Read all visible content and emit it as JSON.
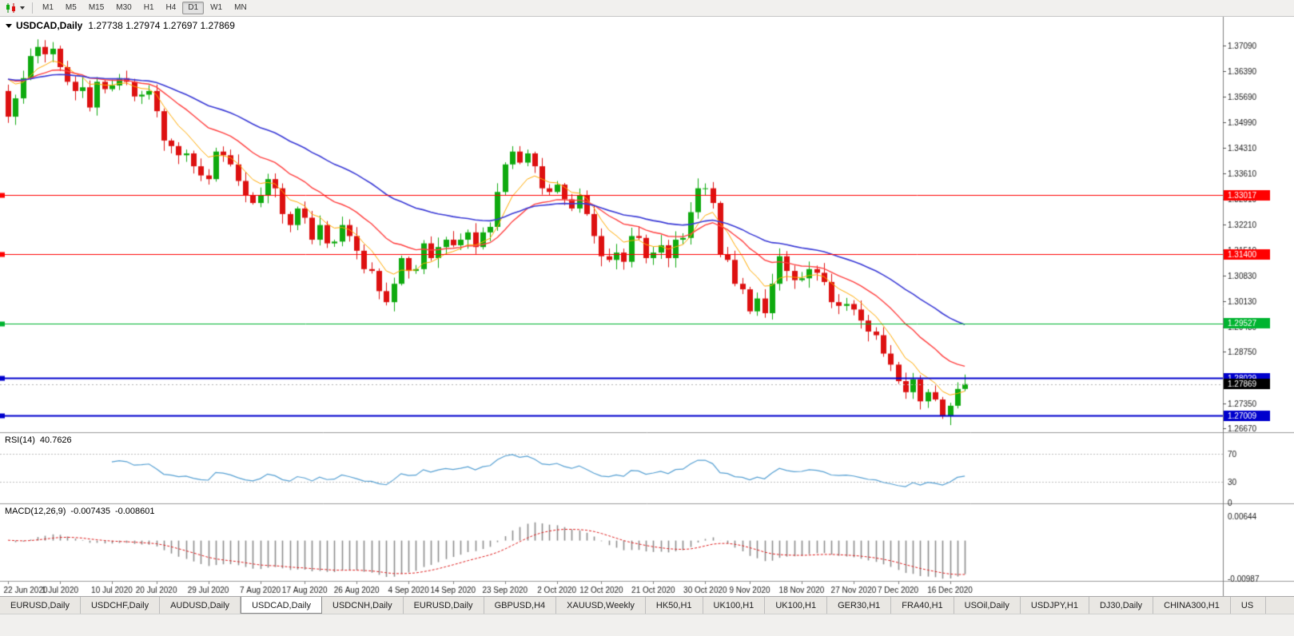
{
  "toolbar": {
    "chart_type_icon": "candlestick-chart-icon",
    "dropdown_icon": "caret-down-icon",
    "timeframes": [
      {
        "label": "M1",
        "active": false
      },
      {
        "label": "M5",
        "active": false
      },
      {
        "label": "M15",
        "active": false
      },
      {
        "label": "M30",
        "active": false
      },
      {
        "label": "H1",
        "active": false
      },
      {
        "label": "H4",
        "active": false
      },
      {
        "label": "D1",
        "active": true
      },
      {
        "label": "W1",
        "active": false
      },
      {
        "label": "MN",
        "active": false
      }
    ]
  },
  "chart": {
    "title": "USDCAD,Daily",
    "ohlc_text": "1.27738 1.27974 1.27697 1.27869",
    "open": "1.27738",
    "high": "1.27974",
    "low": "1.27697",
    "close": "1.27869"
  },
  "indicators": {
    "rsi": {
      "label": "RSI(14)",
      "value": "40.7626",
      "period": 14,
      "levels": [
        70,
        30
      ],
      "axis_labels": [
        "70",
        "30",
        "0"
      ],
      "line_color": "#56a0d3"
    },
    "macd": {
      "label": "MACD(12,26,9)",
      "main_value": "-0.007435",
      "signal_value": "-0.008601",
      "params": [
        12,
        26,
        9
      ],
      "axis_labels": [
        "0.00644",
        "-0.00987"
      ],
      "hist_color": "#8e8e8e",
      "signal_color": "#e02020"
    }
  },
  "price_axis": {
    "labels": [
      "1.37090",
      "1.36390",
      "1.35690",
      "1.34990",
      "1.34310",
      "1.33610",
      "1.32910",
      "1.32210",
      "1.31510",
      "1.30830",
      "1.30130",
      "1.29430",
      "1.28750",
      "1.27350",
      "1.26670"
    ]
  },
  "levels": [
    {
      "price": 1.33017,
      "label": "1.33017",
      "color": "#ff0000",
      "width": 1
    },
    {
      "price": 1.314,
      "label": "1.31400",
      "color": "#ff0000",
      "width": 1
    },
    {
      "price": 1.29527,
      "label": "1.29527",
      "color": "#00b430",
      "width": 1
    },
    {
      "price": 1.28029,
      "label": "1.28029",
      "color": "#0000cd",
      "width": 2
    },
    {
      "price": 1.27009,
      "label": "1.27009",
      "color": "#0000cd",
      "width": 2
    }
  ],
  "current_price": {
    "value": 1.27869,
    "label": "1.27869",
    "line_color": "#b4b4b4",
    "badge_color": "#000000"
  },
  "date_axis": {
    "ticks": [
      {
        "label": "22 Jun 2020",
        "index": 0
      },
      {
        "label": "1 Jul 2020",
        "index": 7
      },
      {
        "label": "10 Jul 2020",
        "index": 14
      },
      {
        "label": "20 Jul 2020",
        "index": 20
      },
      {
        "label": "29 Jul 2020",
        "index": 27
      },
      {
        "label": "7 Aug 2020",
        "index": 34
      },
      {
        "label": "17 Aug 2020",
        "index": 40
      },
      {
        "label": "26 Aug 2020",
        "index": 47
      },
      {
        "label": "4 Sep 2020",
        "index": 54
      },
      {
        "label": "14 Sep 2020",
        "index": 60
      },
      {
        "label": "23 Sep 2020",
        "index": 67
      },
      {
        "label": "2 Oct 2020",
        "index": 74
      },
      {
        "label": "12 Oct 2020",
        "index": 80
      },
      {
        "label": "21 Oct 2020",
        "index": 87
      },
      {
        "label": "30 Oct 2020",
        "index": 94
      },
      {
        "label": "9 Nov 2020",
        "index": 100
      },
      {
        "label": "18 Nov 2020",
        "index": 107
      },
      {
        "label": "27 Nov 2020",
        "index": 114
      },
      {
        "label": "7 Dec 2020",
        "index": 120
      },
      {
        "label": "16 Dec 2020",
        "index": 127
      }
    ]
  },
  "chart_data": {
    "type": "candlestick",
    "symbol": "USDCAD",
    "timeframe": "Daily",
    "title": "USDCAD,Daily",
    "first_open": 1.3585,
    "view_range": {
      "price_min": 1.2658,
      "price_max": 1.3787
    },
    "up_color": "#0faa0f",
    "down_color": "#dd1111",
    "moving_averages": [
      {
        "period": 7,
        "color": "#ffaa00",
        "width": 1
      },
      {
        "period": 18,
        "color": "#ff4040",
        "width": 1.4
      },
      {
        "period": 40,
        "color": "#3a3ad6",
        "width": 1.6
      }
    ],
    "closes": [
      1.3515,
      1.3565,
      1.362,
      1.368,
      1.3705,
      1.3685,
      1.37,
      1.365,
      1.361,
      1.3585,
      1.3595,
      1.354,
      1.361,
      1.359,
      1.36,
      1.362,
      1.361,
      1.357,
      1.3575,
      1.3585,
      1.353,
      1.345,
      1.3435,
      1.341,
      1.3415,
      1.338,
      1.3355,
      1.3345,
      1.342,
      1.341,
      1.3385,
      1.334,
      1.33,
      1.328,
      1.33,
      1.3345,
      1.332,
      1.325,
      1.322,
      1.3265,
      1.324,
      1.318,
      1.322,
      1.317,
      1.3175,
      1.322,
      1.319,
      1.315,
      1.31,
      1.3095,
      1.304,
      1.301,
      1.306,
      1.313,
      1.3095,
      1.31,
      1.317,
      1.313,
      1.316,
      1.318,
      1.3165,
      1.318,
      1.32,
      1.316,
      1.32,
      1.3215,
      1.331,
      1.3385,
      1.342,
      1.339,
      1.3415,
      1.338,
      1.332,
      1.331,
      1.333,
      1.329,
      1.3265,
      1.33,
      1.325,
      1.319,
      1.3135,
      1.3125,
      1.3145,
      1.312,
      1.319,
      1.3185,
      1.313,
      1.3145,
      1.3165,
      1.313,
      1.318,
      1.3185,
      1.3255,
      1.332,
      1.332,
      1.328,
      1.314,
      1.3125,
      1.306,
      1.3045,
      1.2985,
      1.302,
      1.298,
      1.306,
      1.3135,
      1.3095,
      1.307,
      1.3075,
      1.31,
      1.309,
      1.3065,
      1.301,
      1.3,
      1.3005,
      1.299,
      1.296,
      1.293,
      1.292,
      1.287,
      1.284,
      1.2795,
      1.2765,
      1.28,
      1.274,
      1.2765,
      1.2745,
      1.27,
      1.2728,
      1.27738,
      1.27869
    ]
  },
  "tabs": [
    {
      "label": "EURUSD,Daily",
      "active": false
    },
    {
      "label": "USDCHF,Daily",
      "active": false
    },
    {
      "label": "AUDUSD,Daily",
      "active": false
    },
    {
      "label": "USDCAD,Daily",
      "active": true
    },
    {
      "label": "USDCNH,Daily",
      "active": false
    },
    {
      "label": "EURUSD,Daily",
      "active": false
    },
    {
      "label": "GBPUSD,H4",
      "active": false
    },
    {
      "label": "XAUUSD,Weekly",
      "active": false
    },
    {
      "label": "HK50,H1",
      "active": false
    },
    {
      "label": "UK100,H1",
      "active": false
    },
    {
      "label": "UK100,H1",
      "active": false
    },
    {
      "label": "GER30,H1",
      "active": false
    },
    {
      "label": "FRA40,H1",
      "active": false
    },
    {
      "label": "USOil,Daily",
      "active": false
    },
    {
      "label": "USDJPY,H1",
      "active": false
    },
    {
      "label": "DJ30,Daily",
      "active": false
    },
    {
      "label": "CHINA300,H1",
      "active": false
    },
    {
      "label": "US",
      "active": false
    }
  ]
}
